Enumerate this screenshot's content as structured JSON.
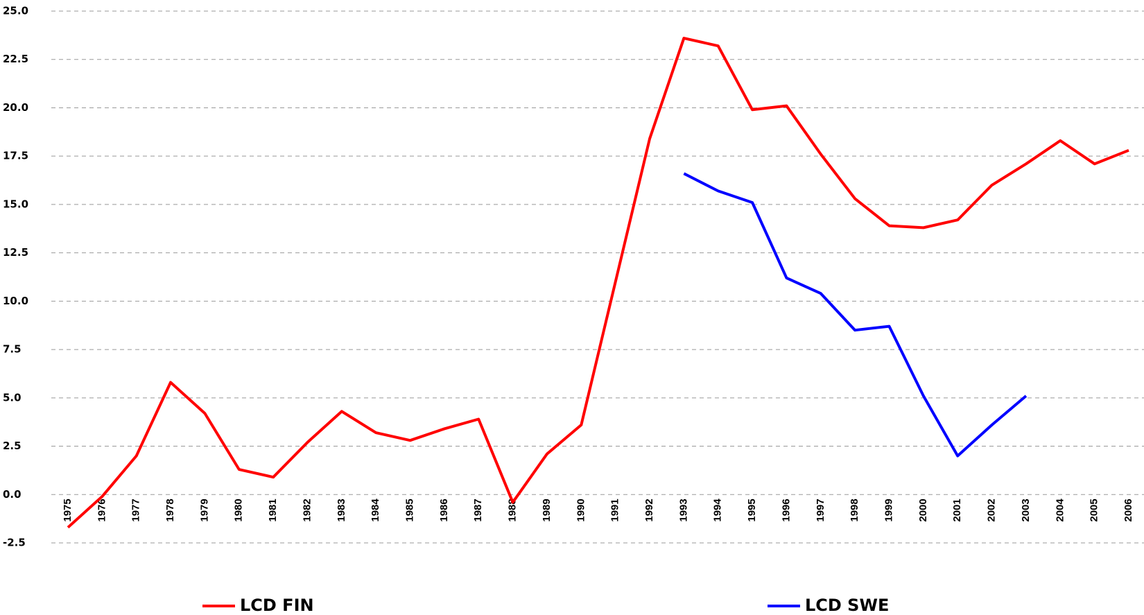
{
  "chart_data": {
    "type": "line",
    "categories": [
      "1975",
      "1976",
      "1977",
      "1978",
      "1979",
      "1980",
      "1981",
      "1982",
      "1983",
      "1984",
      "1985",
      "1986",
      "1987",
      "1988",
      "1989",
      "1990",
      "1991",
      "1992",
      "1993",
      "1994",
      "1995",
      "1996",
      "1997",
      "1998",
      "1999",
      "2000",
      "2001",
      "2002",
      "2003",
      "2004",
      "2005",
      "2006"
    ],
    "series": [
      {
        "name": "LCD FIN",
        "color": "#ff0000",
        "values": [
          -1.7,
          -0.1,
          2.0,
          5.8,
          4.2,
          1.3,
          0.9,
          2.7,
          4.3,
          3.2,
          2.8,
          3.4,
          3.9,
          -0.4,
          2.1,
          3.6,
          11.0,
          18.4,
          23.6,
          23.2,
          19.9,
          20.1,
          17.6,
          15.3,
          13.9,
          13.8,
          14.2,
          16.0,
          17.1,
          18.3,
          17.1,
          17.8
        ]
      },
      {
        "name": "LCD SWE",
        "color": "#0000ff",
        "values": [
          null,
          null,
          null,
          null,
          null,
          null,
          null,
          null,
          null,
          null,
          null,
          null,
          null,
          null,
          null,
          null,
          null,
          null,
          16.6,
          15.7,
          15.1,
          11.2,
          10.4,
          8.5,
          8.7,
          5.1,
          2.0,
          3.6,
          5.1,
          null,
          null,
          null
        ]
      }
    ],
    "ylim": [
      -2.5,
      25
    ],
    "yticks": [
      -2.5,
      {
        "value": 0,
        "label": "0.0"
      },
      2.5,
      {
        "value": 5,
        "label": "5.0"
      },
      7.5,
      {
        "value": 10,
        "label": "10.0"
      },
      12.5,
      {
        "value": 15,
        "label": "15.0"
      },
      17.5,
      {
        "value": 20,
        "label": "20.0"
      },
      22.5,
      {
        "value": 25,
        "label": "25.0"
      }
    ],
    "grid": true,
    "legend": "bottom"
  }
}
